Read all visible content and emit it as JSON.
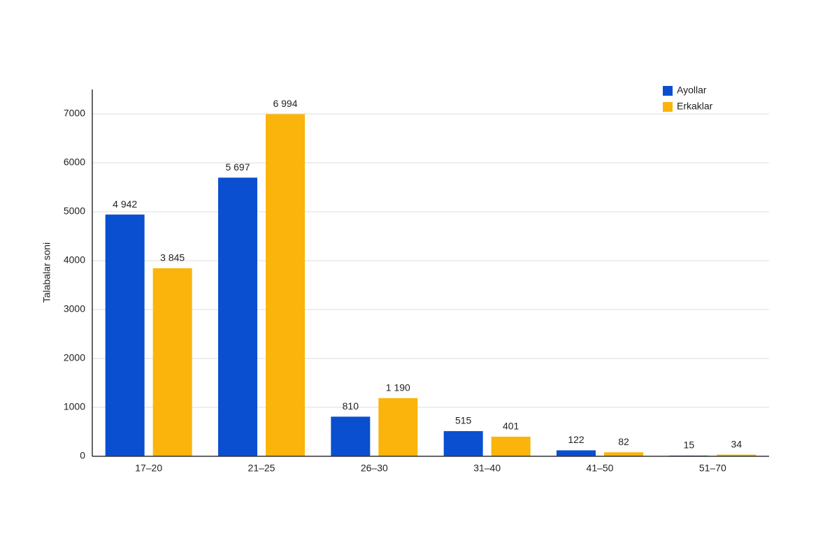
{
  "chart_data": {
    "type": "bar",
    "y_label": "Talabalar soni",
    "categories": [
      "17–20",
      "21–25",
      "26–30",
      "31–40",
      "41–50",
      "51–70"
    ],
    "series": [
      {
        "name": "Ayollar",
        "color": "#0a4fcf",
        "values": [
          4942,
          5697,
          810,
          515,
          122,
          15
        ],
        "value_labels": [
          "4 942",
          "5 697",
          "810",
          "515",
          "122",
          "15"
        ]
      },
      {
        "name": "Erkaklar",
        "color": "#fbb40b",
        "values": [
          3845,
          6994,
          1190,
          401,
          82,
          34
        ],
        "value_labels": [
          "3 845",
          "6 994",
          "1 190",
          "401",
          "82",
          "34"
        ]
      }
    ],
    "ylim": [
      0,
      7500
    ],
    "yticks": [
      0,
      1000,
      2000,
      3000,
      4000,
      5000,
      6000,
      7000
    ],
    "grid": true,
    "legend": "top-right"
  }
}
